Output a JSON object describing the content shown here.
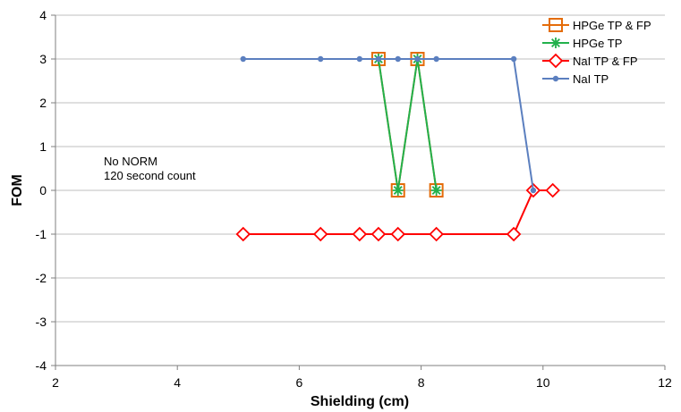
{
  "chart_data": {
    "type": "line",
    "title": "",
    "xlabel": "Shielding (cm)",
    "ylabel": "FOM",
    "xlim": [
      2,
      12
    ],
    "ylim": [
      -4,
      4
    ],
    "xticks": [
      "2",
      "4",
      "6",
      "8",
      "10",
      "12"
    ],
    "yticks": [
      "4",
      "3",
      "2",
      "1",
      "0",
      "-1",
      "-2",
      "-3",
      "-4"
    ],
    "grid": "horizontal",
    "legend_position": "top-right",
    "annotations": [
      "No NORM",
      "120 second count"
    ],
    "series": [
      {
        "name": "HPGe TP & FP",
        "color": "#E46C0A",
        "marker": "square",
        "points": [
          [
            7.3,
            3
          ],
          [
            7.62,
            0
          ],
          [
            7.94,
            3
          ],
          [
            8.25,
            0
          ]
        ]
      },
      {
        "name": "HPGe TP",
        "color": "#22B14C",
        "marker": "star",
        "points": [
          [
            7.3,
            3
          ],
          [
            7.62,
            0
          ],
          [
            7.94,
            3
          ],
          [
            8.25,
            0
          ]
        ]
      },
      {
        "name": "NaI  TP & FP",
        "color": "#FF0000",
        "marker": "diamond",
        "points": [
          [
            5.08,
            -1
          ],
          [
            6.35,
            -1
          ],
          [
            6.99,
            -1
          ],
          [
            7.3,
            -1
          ],
          [
            7.62,
            -1
          ],
          [
            8.25,
            -1
          ],
          [
            9.52,
            -1
          ],
          [
            9.84,
            0
          ],
          [
            10.16,
            0
          ]
        ]
      },
      {
        "name": "NaI  TP",
        "color": "#5B7FBF",
        "marker": "circle",
        "points": [
          [
            5.08,
            3
          ],
          [
            6.35,
            3
          ],
          [
            6.99,
            3
          ],
          [
            7.3,
            3
          ],
          [
            7.62,
            3
          ],
          [
            7.94,
            3
          ],
          [
            8.25,
            3
          ],
          [
            9.52,
            3
          ],
          [
            9.84,
            0
          ]
        ]
      }
    ]
  }
}
